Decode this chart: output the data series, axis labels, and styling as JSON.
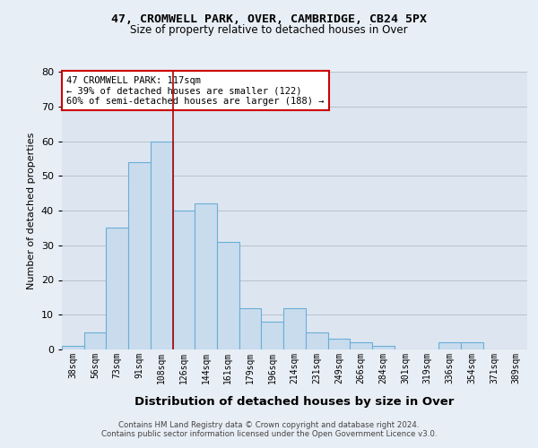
{
  "title1": "47, CROMWELL PARK, OVER, CAMBRIDGE, CB24 5PX",
  "title2": "Size of property relative to detached houses in Over",
  "xlabel": "Distribution of detached houses by size in Over",
  "ylabel": "Number of detached properties",
  "bar_labels": [
    "38sqm",
    "56sqm",
    "73sqm",
    "91sqm",
    "108sqm",
    "126sqm",
    "144sqm",
    "161sqm",
    "179sqm",
    "196sqm",
    "214sqm",
    "231sqm",
    "249sqm",
    "266sqm",
    "284sqm",
    "301sqm",
    "319sqm",
    "336sqm",
    "354sqm",
    "371sqm",
    "389sqm"
  ],
  "bar_values": [
    1,
    5,
    35,
    54,
    60,
    40,
    42,
    31,
    12,
    8,
    12,
    5,
    3,
    2,
    1,
    0,
    0,
    2,
    2,
    0,
    0
  ],
  "bar_color": "#c9dcee",
  "bar_edge_color": "#6aaed6",
  "ylim": [
    0,
    80
  ],
  "yticks": [
    0,
    10,
    20,
    30,
    40,
    50,
    60,
    70,
    80
  ],
  "annotation_line1": "47 CROMWELL PARK: 117sqm",
  "annotation_line2": "← 39% of detached houses are smaller (122)",
  "annotation_line3": "60% of semi-detached houses are larger (188) →",
  "annotation_box_color": "#ffffff",
  "annotation_border_color": "#cc0000",
  "vline_color": "#aa0000",
  "footer1": "Contains HM Land Registry data © Crown copyright and database right 2024.",
  "footer2": "Contains public sector information licensed under the Open Government Licence v3.0.",
  "bg_color": "#e8eef5",
  "plot_bg_color": "#dde6f0",
  "grid_color": "#b0bcc8"
}
